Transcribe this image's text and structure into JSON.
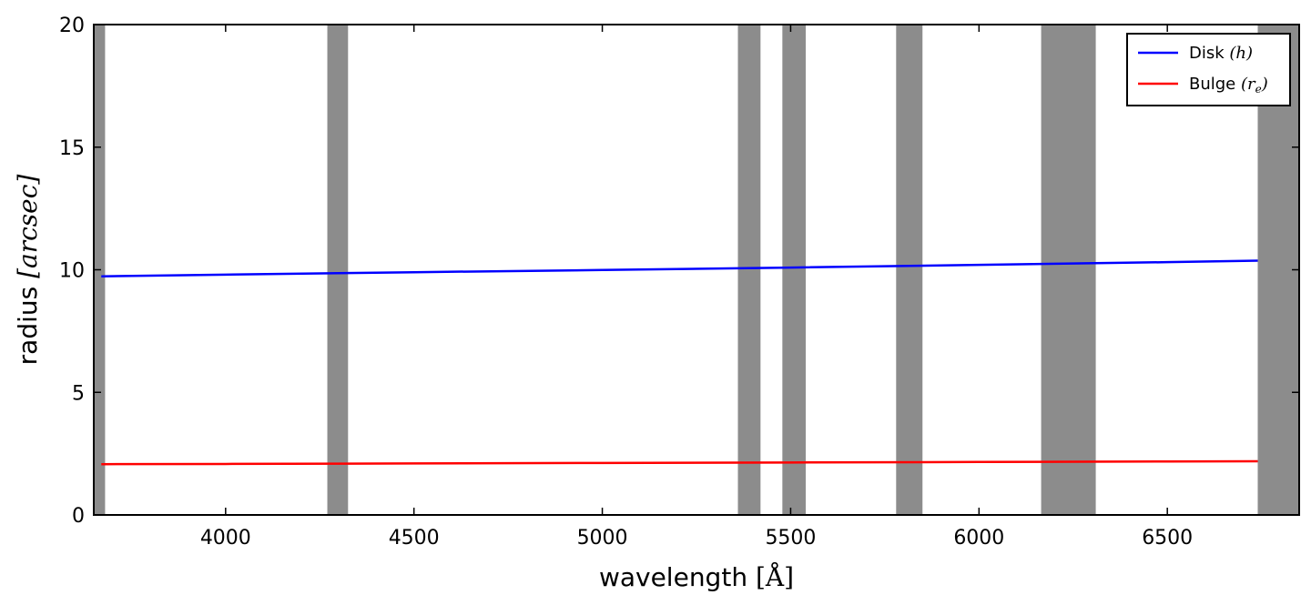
{
  "chart_data": {
    "type": "line",
    "xlabel": {
      "prefix": "wavelength ",
      "math": "[Å]"
    },
    "ylabel": {
      "prefix": "radius ",
      "math": "[arcsec]"
    },
    "xlim": [
      3650,
      6850
    ],
    "ylim": [
      0,
      20
    ],
    "xticks": [
      4000,
      4500,
      5000,
      5500,
      6000,
      6500
    ],
    "yticks": [
      0,
      5,
      10,
      15,
      20
    ],
    "grid": false,
    "legend_position": "top-right",
    "masked_regions": [
      [
        3650,
        3680
      ],
      [
        4270,
        4325
      ],
      [
        5360,
        5420
      ],
      [
        5478,
        5540
      ],
      [
        5780,
        5850
      ],
      [
        6165,
        6310
      ],
      [
        6740,
        6850
      ]
    ],
    "mask_color": "#8c8c8c",
    "series": [
      {
        "name": "Disk",
        "legend_math": "(h)",
        "color": "#0000ff",
        "x": [
          3670,
          4000,
          4500,
          5000,
          5500,
          6000,
          6500,
          6740
        ],
        "y": [
          9.73,
          9.8,
          9.9,
          9.99,
          10.09,
          10.2,
          10.31,
          10.37
        ]
      },
      {
        "name": "Bulge",
        "legend_math": "(r",
        "legend_sub": "e",
        "legend_math_close": ")",
        "color": "#ff0000",
        "x": [
          3670,
          4000,
          4500,
          5000,
          5500,
          6000,
          6500,
          6740
        ],
        "y": [
          2.07,
          2.08,
          2.1,
          2.12,
          2.14,
          2.16,
          2.18,
          2.19
        ]
      }
    ]
  }
}
